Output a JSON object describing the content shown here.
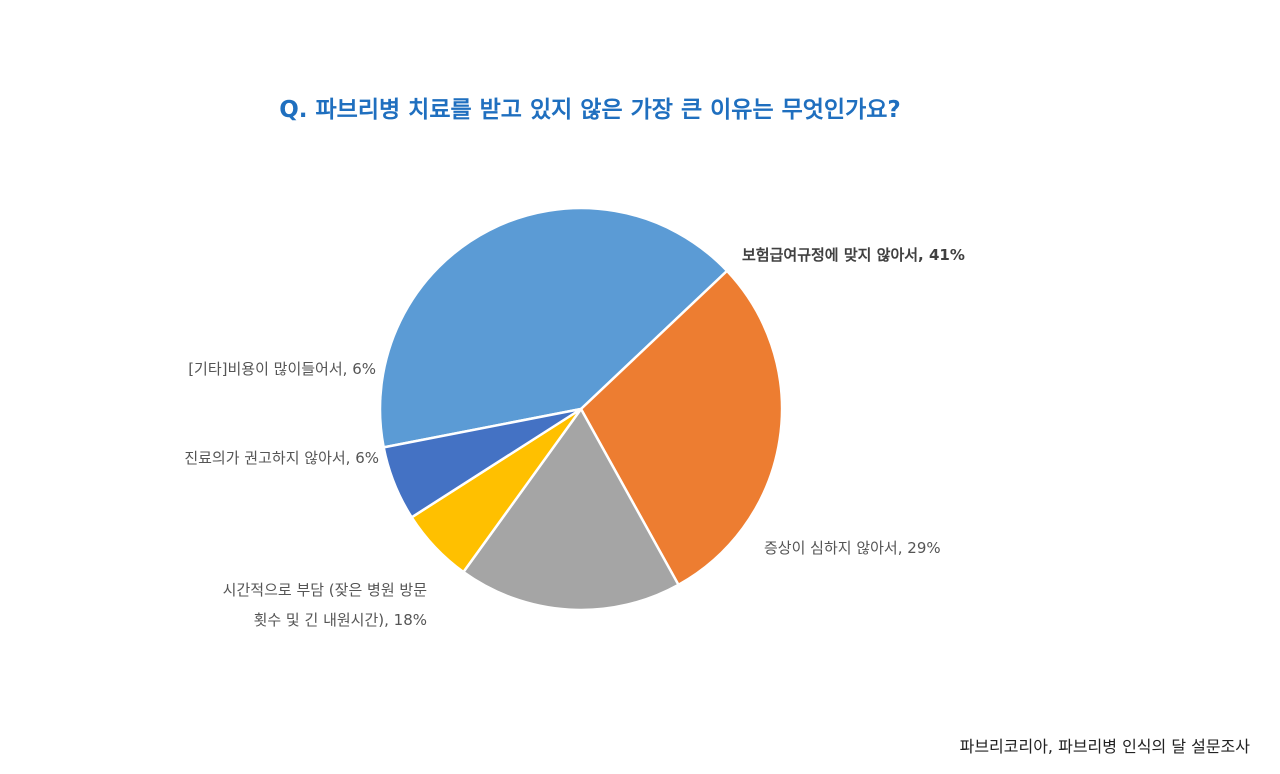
{
  "title": "Q. 파브리병 치료를 받고 있지 않은 가장 큰 이유는 무엇인가요?",
  "source": "파브리코리아, 파브리병 인식의 달 설문조사",
  "chart_data": {
    "type": "pie",
    "title": "Q. 파브리병 치료를 받고 있지 않은 가장 큰 이유는 무엇인가요?",
    "slices": [
      {
        "label": "보험급여규정에 맞지 않아서",
        "value": 41,
        "display": "보험급여규정에 맞지 않아서, 41%",
        "color": "#5b9bd5",
        "bold": true
      },
      {
        "label": "증상이 심하지 않아서",
        "value": 29,
        "display": "증상이 심하지 않아서, 29%",
        "color": "#ed7d31"
      },
      {
        "label": "시간적으로 부담 (잦은 병원 방문 횟수 및 긴 내원시간)",
        "value": 18,
        "display": [
          "시간적으로 부담 (잦은 병원 방문",
          "횟수 및 긴 내원시간), 18%"
        ],
        "color": "#a5a5a5"
      },
      {
        "label": "진료의가 권고하지 않아서",
        "value": 6,
        "display": "진료의가 권고하지 않아서, 6%",
        "color": "#ffc000"
      },
      {
        "label": "[기타]비용이 많이들어서",
        "value": 6,
        "display": "[기타]비용이 많이들어서, 6%",
        "color": "#4472c4"
      }
    ]
  }
}
